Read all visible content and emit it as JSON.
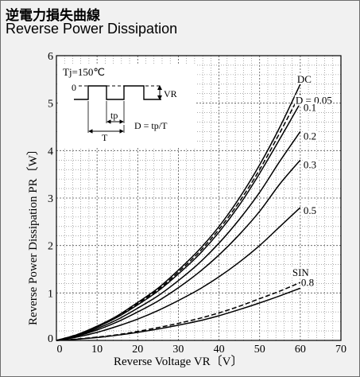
{
  "header": {
    "title_ja": "逆電力損失曲線",
    "title_en": "Reverse Power Dissipation"
  },
  "chart_data": {
    "type": "line",
    "title": "Reverse Power Dissipation",
    "xlabel": "Reverse Voltage  VR〔V〕",
    "ylabel": "Reverse Power Dissipation  PR〔W〕",
    "xlim": [
      0,
      70
    ],
    "ylim": [
      0,
      6
    ],
    "x_ticks": [
      0,
      10,
      20,
      30,
      40,
      50,
      60,
      70
    ],
    "y_ticks": [
      0,
      1,
      2,
      3,
      4,
      5,
      6
    ],
    "grid": true,
    "condition": "Tj=150℃",
    "inset": {
      "level_label": "0",
      "amplitude_label": "VR",
      "pulse_label": "tp",
      "period_label": "T",
      "formula": "D = tp/T"
    },
    "x": [
      0,
      5,
      10,
      15,
      20,
      25,
      30,
      35,
      40,
      45,
      50,
      55,
      60
    ],
    "series": [
      {
        "name": "DC",
        "dashed": false,
        "values": [
          0,
          0.12,
          0.3,
          0.52,
          0.8,
          1.1,
          1.48,
          1.9,
          2.4,
          3.0,
          3.7,
          4.5,
          5.4
        ]
      },
      {
        "name": "D = 0.05",
        "dashed": true,
        "values": [
          0,
          0.12,
          0.29,
          0.5,
          0.78,
          1.07,
          1.44,
          1.85,
          2.34,
          2.92,
          3.6,
          4.38,
          5.2
        ]
      },
      {
        "name": "0.1",
        "dashed": false,
        "values": [
          0,
          0.11,
          0.28,
          0.49,
          0.75,
          1.04,
          1.4,
          1.8,
          2.28,
          2.85,
          3.52,
          4.25,
          5.0
        ]
      },
      {
        "name": "0.2",
        "dashed": false,
        "values": [
          0,
          0.1,
          0.25,
          0.44,
          0.68,
          0.94,
          1.26,
          1.62,
          2.05,
          2.55,
          3.12,
          3.78,
          4.4
        ]
      },
      {
        "name": "0.3",
        "dashed": false,
        "values": [
          0,
          0.09,
          0.22,
          0.39,
          0.6,
          0.83,
          1.11,
          1.43,
          1.8,
          2.23,
          2.72,
          3.3,
          3.8
        ]
      },
      {
        "name": "0.5",
        "dashed": false,
        "values": [
          0,
          0.07,
          0.17,
          0.3,
          0.45,
          0.63,
          0.84,
          1.07,
          1.34,
          1.65,
          2.0,
          2.4,
          2.8
        ]
      },
      {
        "name": "SIN",
        "dashed": true,
        "values": [
          0,
          0.03,
          0.07,
          0.12,
          0.19,
          0.27,
          0.36,
          0.46,
          0.58,
          0.72,
          0.88,
          1.04,
          1.22
        ]
      },
      {
        "name": "0.8",
        "dashed": false,
        "values": [
          0,
          0.025,
          0.06,
          0.11,
          0.17,
          0.24,
          0.32,
          0.41,
          0.52,
          0.65,
          0.79,
          0.94,
          1.1
        ]
      }
    ]
  }
}
